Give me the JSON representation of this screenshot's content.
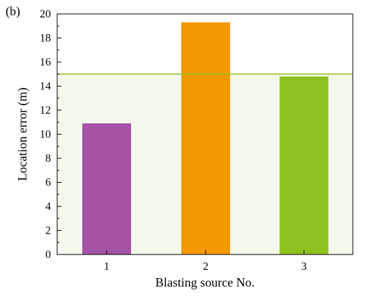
{
  "panel_label": "(b)",
  "colors": {
    "bar_1": "#A652A5",
    "bar_2": "#F39800",
    "bar_3": "#8CC21F",
    "threshold_line": "#8CC21F",
    "threshold_fill": "#F3F9ED",
    "axis": "#000000"
  },
  "chart_data": {
    "type": "bar",
    "title": "",
    "xlabel": "Blasting source No.",
    "ylabel": "Location error (m)",
    "categories": [
      "1",
      "2",
      "3"
    ],
    "values": [
      10.9,
      19.3,
      14.8
    ],
    "ylim": [
      0,
      20
    ],
    "yticks": [
      0,
      2,
      4,
      6,
      8,
      10,
      12,
      14,
      16,
      18,
      20
    ],
    "grid": false,
    "legend": "none",
    "threshold": 15,
    "threshold_region": [
      0,
      15
    ]
  }
}
